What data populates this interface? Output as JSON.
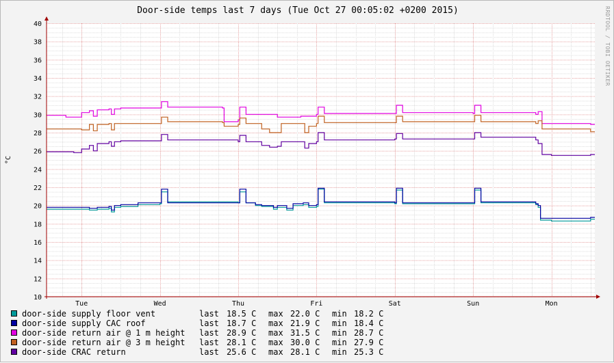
{
  "chart_data": {
    "type": "line",
    "title": "Door-side temps last 7 days (Tue Oct 27 00:05:02 +0200 2015)",
    "ylabel": "°C",
    "side_label": "RRDTOOL / TOBI OETIKER",
    "ylim": [
      10,
      40
    ],
    "yticks": [
      10,
      12,
      14,
      16,
      18,
      20,
      22,
      24,
      26,
      28,
      30,
      32,
      34,
      36,
      38,
      40
    ],
    "xlim": [
      0,
      7
    ],
    "day_labels": [
      "Tue",
      "Wed",
      "Thu",
      "Fri",
      "Sat",
      "Sun",
      "Mon"
    ],
    "grid": true,
    "legend_position": "bottom",
    "colors": {
      "grid": "#e6a3a3",
      "axis": "#a00000"
    },
    "series": [
      {
        "name": "door-side supply floor vent",
        "color": "#009a9a",
        "last": "18.5 C",
        "max": "22.0 C",
        "min": "18.2 C",
        "points": [
          [
            0,
            19.6
          ],
          [
            0.6,
            19.5
          ],
          [
            0.7,
            19.6
          ],
          [
            0.85,
            19.7
          ],
          [
            0.88,
            19.3
          ],
          [
            0.92,
            19.8
          ],
          [
            1.0,
            19.9
          ],
          [
            1.2,
            19.9
          ],
          [
            1.22,
            20.1
          ],
          [
            1.5,
            20.2
          ],
          [
            1.52,
            21.5
          ],
          [
            1.6,
            20.4
          ],
          [
            2.5,
            20.3
          ],
          [
            2.52,
            21.5
          ],
          [
            2.6,
            20.3
          ],
          [
            2.72,
            20.0
          ],
          [
            2.8,
            19.9
          ],
          [
            2.95,
            19.6
          ],
          [
            3.0,
            19.8
          ],
          [
            3.12,
            19.5
          ],
          [
            3.2,
            20.0
          ],
          [
            3.3,
            20.0
          ],
          [
            3.33,
            20.1
          ],
          [
            3.4,
            19.8
          ],
          [
            3.5,
            19.9
          ],
          [
            3.52,
            21.8
          ],
          [
            3.6,
            20.3
          ],
          [
            4.5,
            20.2
          ],
          [
            4.52,
            21.7
          ],
          [
            4.6,
            20.2
          ],
          [
            5.5,
            20.2
          ],
          [
            5.52,
            21.7
          ],
          [
            5.6,
            20.3
          ],
          [
            6.3,
            20.1
          ],
          [
            6.33,
            19.8
          ],
          [
            6.36,
            18.4
          ],
          [
            6.5,
            18.3
          ],
          [
            7,
            18.5
          ]
        ]
      },
      {
        "name": "door-side supply CAC roof",
        "color": "#0000a0",
        "last": "18.7 C",
        "max": "21.9 C",
        "min": "18.4 C",
        "points": [
          [
            0,
            19.8
          ],
          [
            0.6,
            19.7
          ],
          [
            0.7,
            19.8
          ],
          [
            0.85,
            19.9
          ],
          [
            0.88,
            19.5
          ],
          [
            0.92,
            20.0
          ],
          [
            1.0,
            20.1
          ],
          [
            1.2,
            20.1
          ],
          [
            1.22,
            20.3
          ],
          [
            1.5,
            20.3
          ],
          [
            1.52,
            21.8
          ],
          [
            1.6,
            20.3
          ],
          [
            2.5,
            20.3
          ],
          [
            2.52,
            21.8
          ],
          [
            2.6,
            20.3
          ],
          [
            2.72,
            20.1
          ],
          [
            2.8,
            20.0
          ],
          [
            2.95,
            19.8
          ],
          [
            3.0,
            20.0
          ],
          [
            3.12,
            19.7
          ],
          [
            3.2,
            20.2
          ],
          [
            3.3,
            20.2
          ],
          [
            3.33,
            20.3
          ],
          [
            3.4,
            20.0
          ],
          [
            3.5,
            20.1
          ],
          [
            3.52,
            21.9
          ],
          [
            3.6,
            20.4
          ],
          [
            4.5,
            20.3
          ],
          [
            4.52,
            21.9
          ],
          [
            4.6,
            20.3
          ],
          [
            5.5,
            20.3
          ],
          [
            5.52,
            21.9
          ],
          [
            5.6,
            20.4
          ],
          [
            6.3,
            20.2
          ],
          [
            6.33,
            20.0
          ],
          [
            6.36,
            18.6
          ],
          [
            6.5,
            18.6
          ],
          [
            7,
            18.7
          ]
        ]
      },
      {
        "name": "door-side return air @ 1 m height",
        "color": "#e000e0",
        "last": "28.9 C",
        "max": "31.5 C",
        "min": "28.7 C",
        "points": [
          [
            0,
            29.9
          ],
          [
            0.3,
            29.7
          ],
          [
            0.45,
            29.7
          ],
          [
            0.5,
            30.2
          ],
          [
            0.6,
            30.4
          ],
          [
            0.65,
            29.8
          ],
          [
            0.7,
            30.5
          ],
          [
            0.85,
            30.6
          ],
          [
            0.88,
            30.0
          ],
          [
            0.92,
            30.6
          ],
          [
            1.0,
            30.7
          ],
          [
            1.5,
            30.7
          ],
          [
            1.52,
            31.4
          ],
          [
            1.6,
            30.8
          ],
          [
            2.3,
            30.7
          ],
          [
            2.32,
            29.2
          ],
          [
            2.5,
            29.4
          ],
          [
            2.52,
            30.8
          ],
          [
            2.6,
            30.0
          ],
          [
            3.0,
            29.7
          ],
          [
            3.3,
            29.8
          ],
          [
            3.5,
            30.0
          ],
          [
            3.52,
            30.8
          ],
          [
            3.6,
            30.1
          ],
          [
            4.5,
            30.1
          ],
          [
            4.52,
            31.0
          ],
          [
            4.6,
            30.2
          ],
          [
            5.5,
            30.1
          ],
          [
            5.52,
            31.0
          ],
          [
            5.6,
            30.2
          ],
          [
            6.3,
            30.0
          ],
          [
            6.33,
            30.3
          ],
          [
            6.38,
            29.0
          ],
          [
            7,
            28.9
          ]
        ]
      },
      {
        "name": "door-side return air @ 3 m height",
        "color": "#c06020",
        "last": "28.1 C",
        "max": "30.0 C",
        "min": "27.9 C",
        "points": [
          [
            0,
            28.4
          ],
          [
            0.5,
            28.3
          ],
          [
            0.6,
            28.9
          ],
          [
            0.65,
            28.2
          ],
          [
            0.7,
            28.9
          ],
          [
            0.85,
            29.0
          ],
          [
            0.88,
            28.3
          ],
          [
            0.92,
            29.0
          ],
          [
            1.0,
            29.0
          ],
          [
            1.5,
            29.0
          ],
          [
            1.52,
            29.7
          ],
          [
            1.6,
            29.2
          ],
          [
            2.3,
            29.1
          ],
          [
            2.32,
            28.7
          ],
          [
            2.5,
            28.9
          ],
          [
            2.52,
            29.6
          ],
          [
            2.6,
            29.0
          ],
          [
            2.8,
            28.4
          ],
          [
            2.9,
            28.0
          ],
          [
            3.0,
            28.0
          ],
          [
            3.05,
            29.0
          ],
          [
            3.3,
            29.0
          ],
          [
            3.35,
            28.0
          ],
          [
            3.4,
            28.7
          ],
          [
            3.5,
            29.0
          ],
          [
            3.52,
            29.8
          ],
          [
            3.6,
            29.1
          ],
          [
            4.5,
            29.1
          ],
          [
            4.52,
            29.8
          ],
          [
            4.6,
            29.2
          ],
          [
            5.5,
            29.2
          ],
          [
            5.52,
            29.9
          ],
          [
            5.6,
            29.2
          ],
          [
            6.3,
            29.0
          ],
          [
            6.33,
            29.3
          ],
          [
            6.38,
            28.4
          ],
          [
            7,
            28.1
          ]
        ]
      },
      {
        "name": "door-side CRAC return",
        "color": "#6000a0",
        "last": "25.6 C",
        "max": "28.1 C",
        "min": "25.3 C",
        "points": [
          [
            0,
            25.9
          ],
          [
            0.4,
            25.8
          ],
          [
            0.5,
            26.2
          ],
          [
            0.6,
            26.6
          ],
          [
            0.65,
            26.0
          ],
          [
            0.7,
            26.8
          ],
          [
            0.85,
            27.0
          ],
          [
            0.88,
            26.5
          ],
          [
            0.92,
            27.0
          ],
          [
            1.0,
            27.1
          ],
          [
            1.5,
            27.1
          ],
          [
            1.52,
            27.8
          ],
          [
            1.6,
            27.2
          ],
          [
            2.5,
            27.0
          ],
          [
            2.52,
            27.7
          ],
          [
            2.6,
            27.0
          ],
          [
            2.8,
            26.6
          ],
          [
            2.9,
            26.4
          ],
          [
            3.0,
            26.5
          ],
          [
            3.05,
            27.0
          ],
          [
            3.3,
            27.0
          ],
          [
            3.35,
            26.3
          ],
          [
            3.4,
            26.8
          ],
          [
            3.5,
            27.0
          ],
          [
            3.52,
            28.0
          ],
          [
            3.6,
            27.2
          ],
          [
            4.5,
            27.3
          ],
          [
            4.52,
            27.9
          ],
          [
            4.6,
            27.3
          ],
          [
            5.5,
            27.3
          ],
          [
            5.52,
            28.0
          ],
          [
            5.6,
            27.5
          ],
          [
            6.3,
            27.2
          ],
          [
            6.33,
            26.8
          ],
          [
            6.38,
            25.6
          ],
          [
            6.5,
            25.5
          ],
          [
            7,
            25.6
          ]
        ]
      }
    ]
  },
  "legend": {
    "labels": {
      "last": "last",
      "max": "max",
      "min": "min"
    }
  }
}
